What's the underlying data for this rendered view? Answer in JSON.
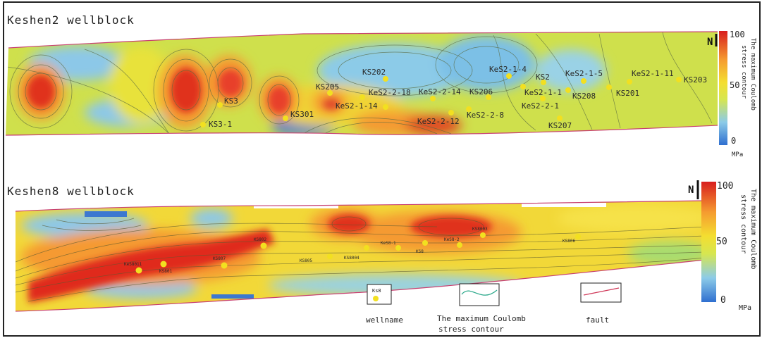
{
  "panels": [
    {
      "title": "Keshen2 wellblock",
      "north_label": "N",
      "colorbar": {
        "max_label": "100",
        "mid_label": "50",
        "min_label": "0",
        "unit": "MPa",
        "title_line1": "The maximum Coulomb",
        "title_line2": "stress contour"
      },
      "wells": [
        {
          "name": "KS202"
        },
        {
          "name": "KeS2-1-4"
        },
        {
          "name": "KS2"
        },
        {
          "name": "KeS2-1-5"
        },
        {
          "name": "KeS2-1-11"
        },
        {
          "name": "KS203"
        },
        {
          "name": "KS205"
        },
        {
          "name": "KeS2-2-18"
        },
        {
          "name": "KeS2-2-14"
        },
        {
          "name": "KS206"
        },
        {
          "name": "KeS2-1-1"
        },
        {
          "name": "KS208"
        },
        {
          "name": "KS201"
        },
        {
          "name": "KS3"
        },
        {
          "name": "KeS2-1-14"
        },
        {
          "name": "KeS2-2-1"
        },
        {
          "name": "KS301"
        },
        {
          "name": "KeS2-2-8"
        },
        {
          "name": "KS3-1"
        },
        {
          "name": "KeS2-2-12"
        },
        {
          "name": "KS207"
        }
      ]
    },
    {
      "title": "Keshen8 wellblock",
      "north_label": "N",
      "colorbar": {
        "max_label": "100",
        "mid_label": "50",
        "min_label": "0",
        "unit": "MPa",
        "title_line1": "The maximum Coulomb",
        "title_line2": "stress contour"
      },
      "wells": [
        {
          "name": "KS802"
        },
        {
          "name": "KeS8-1"
        },
        {
          "name": "KeS8-2"
        },
        {
          "name": "KS8003"
        },
        {
          "name": "KS806"
        },
        {
          "name": "KeS8011"
        },
        {
          "name": "KS801"
        },
        {
          "name": "KS807"
        },
        {
          "name": "KS805"
        },
        {
          "name": "KS8004"
        },
        {
          "name": "KS8"
        }
      ]
    }
  ],
  "legend": {
    "well_sample_label": "Ks8",
    "well_caption": "wellname",
    "contour_caption_line1": "The maximum Coulomb",
    "contour_caption_line2": "stress contour",
    "fault_caption": "fault"
  },
  "colors": {
    "high": "#e03020",
    "orange": "#f59a30",
    "yellow": "#f2e030",
    "green": "#c8dc50",
    "cyan": "#7cc8e8",
    "blue": "#3c78d0",
    "well_marker": "#f2e020",
    "fault_line": "#d03a5a",
    "contour_line": "#2aa88a"
  }
}
